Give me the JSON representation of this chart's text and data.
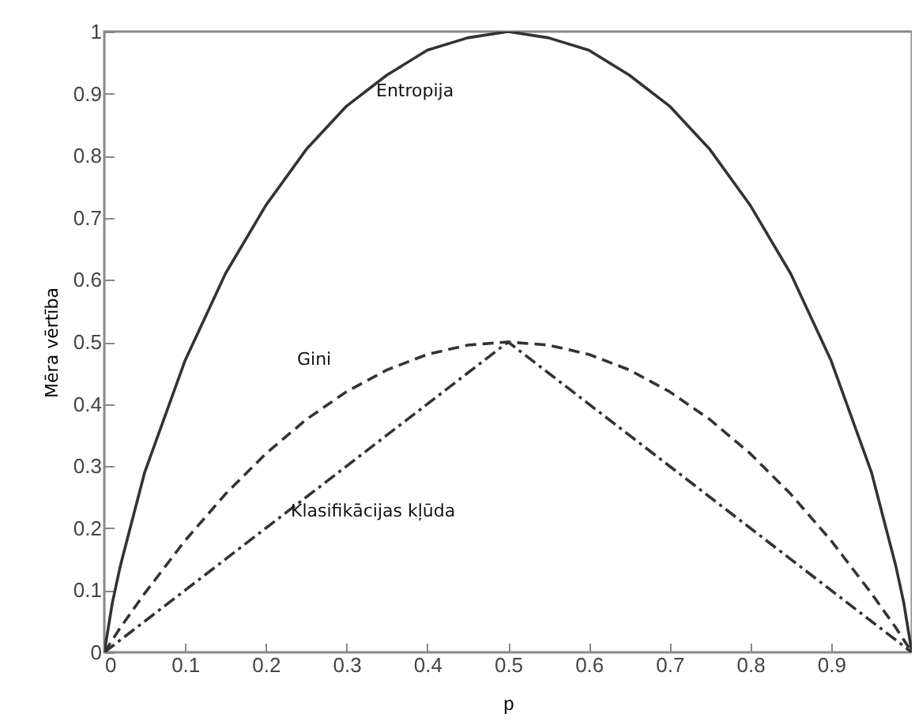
{
  "chart_data": {
    "type": "line",
    "xlabel": "p",
    "ylabel": "Mēra vērtība",
    "x": [
      0,
      0.01,
      0.02,
      0.05,
      0.1,
      0.15,
      0.2,
      0.25,
      0.3,
      0.35,
      0.4,
      0.45,
      0.5,
      0.55,
      0.6,
      0.65,
      0.7,
      0.75,
      0.8,
      0.85,
      0.9,
      0.95,
      0.98,
      0.99,
      1
    ],
    "series": [
      {
        "name": "Entropija",
        "color": "#333333",
        "line_style": "solid",
        "values": [
          0,
          0.08,
          0.14,
          0.29,
          0.47,
          0.61,
          0.72,
          0.81,
          0.88,
          0.93,
          0.97,
          0.99,
          1,
          0.99,
          0.97,
          0.93,
          0.88,
          0.81,
          0.72,
          0.61,
          0.47,
          0.29,
          0.14,
          0.08,
          0
        ]
      },
      {
        "name": "Gini",
        "color": "#333333",
        "line_style": "dashed",
        "values": [
          0,
          0.02,
          0.04,
          0.095,
          0.18,
          0.255,
          0.32,
          0.375,
          0.42,
          0.455,
          0.48,
          0.495,
          0.5,
          0.495,
          0.48,
          0.455,
          0.42,
          0.375,
          0.32,
          0.255,
          0.18,
          0.095,
          0.04,
          0.02,
          0
        ]
      },
      {
        "name": "Klasifikācijas kļūda",
        "color": "#333333",
        "line_style": "dashdot",
        "values": [
          0,
          0.01,
          0.02,
          0.05,
          0.1,
          0.15,
          0.2,
          0.25,
          0.3,
          0.35,
          0.4,
          0.45,
          0.5,
          0.45,
          0.4,
          0.35,
          0.3,
          0.25,
          0.2,
          0.15,
          0.1,
          0.05,
          0.02,
          0.01,
          0
        ]
      }
    ],
    "xlim": [
      0,
      1
    ],
    "ylim": [
      0,
      1
    ],
    "xticks": [
      0,
      0.1,
      0.2,
      0.3,
      0.4,
      0.5,
      0.6,
      0.7,
      0.8,
      0.9
    ],
    "yticks": [
      0,
      0.1,
      0.2,
      0.3,
      0.4,
      0.5,
      0.6,
      0.7,
      0.8,
      0.9,
      1
    ],
    "grid": false,
    "legend": false
  }
}
